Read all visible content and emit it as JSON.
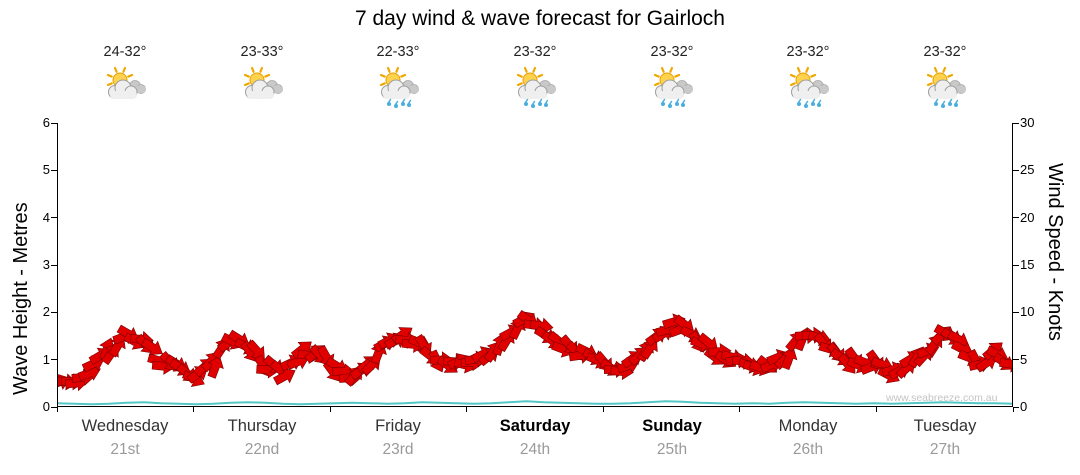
{
  "watermark": "www.seabreeze.com.au",
  "days": [
    {
      "name": "Wednesday",
      "date": "21st",
      "temp": "24-32°",
      "icon": "sun-clouds",
      "bold": false
    },
    {
      "name": "Thursday",
      "date": "22nd",
      "temp": "23-33°",
      "icon": "sun-clouds",
      "bold": false
    },
    {
      "name": "Friday",
      "date": "23rd",
      "temp": "22-33°",
      "icon": "sun-cloud-rain",
      "bold": false
    },
    {
      "name": "Saturday",
      "date": "24th",
      "temp": "23-32°",
      "icon": "sun-cloud-rain",
      "bold": true
    },
    {
      "name": "Sunday",
      "date": "25th",
      "temp": "23-32°",
      "icon": "sun-cloud-rain",
      "bold": true
    },
    {
      "name": "Monday",
      "date": "26th",
      "temp": "23-32°",
      "icon": "sun-cloud-rain",
      "bold": false
    },
    {
      "name": "Tuesday",
      "date": "27th",
      "temp": "23-32°",
      "icon": "sun-cloud-rain",
      "bold": false
    }
  ],
  "chart_data": {
    "type": "line",
    "title": "7 day wind & wave forecast for Gairloch",
    "categories": [
      "Wednesday 21st",
      "Thursday 22nd",
      "Friday 23rd",
      "Saturday 24th",
      "Sunday 25th",
      "Monday 26th",
      "Tuesday 27th"
    ],
    "points_per_day": 8,
    "left_axis": {
      "label": "Wave Height - Metres",
      "min": 0,
      "max": 6,
      "ticks": [
        0,
        1,
        2,
        3,
        4,
        5,
        6
      ]
    },
    "right_axis": {
      "label": "Wind Speed - Knots",
      "min": 0,
      "max": 30,
      "ticks": [
        0,
        5,
        10,
        15,
        20,
        25,
        30
      ]
    },
    "legend": "none",
    "grid": "off",
    "series": [
      {
        "name": "Wind Speed",
        "unit": "knots",
        "axis": "right",
        "color": "#e10000",
        "style": "red-arrow-band",
        "values": [
          3,
          3,
          4,
          6,
          7.5,
          6.5,
          5,
          4,
          3,
          4.5,
          7,
          6.5,
          4.5,
          3.5,
          5.5,
          6,
          4,
          3.5,
          4.5,
          6.5,
          7.5,
          6.5,
          5,
          4.5,
          4.5,
          5.5,
          7.5,
          9,
          8,
          6.5,
          5.5,
          5,
          4,
          4.5,
          6.5,
          8.5,
          8.5,
          7,
          5.5,
          5,
          4.5,
          4,
          5.5,
          7.5,
          7,
          5.5,
          4.5,
          4.5,
          3.5,
          4.5,
          6,
          7.5,
          6.5,
          5,
          5.5,
          4.5
        ]
      },
      {
        "name": "Wave Height",
        "unit": "metres",
        "axis": "left",
        "color": "#53c6c6",
        "style": "line",
        "values": [
          0.08,
          0.07,
          0.06,
          0.07,
          0.09,
          0.1,
          0.08,
          0.07,
          0.06,
          0.07,
          0.09,
          0.1,
          0.09,
          0.07,
          0.06,
          0.07,
          0.08,
          0.09,
          0.08,
          0.07,
          0.08,
          0.1,
          0.09,
          0.08,
          0.07,
          0.08,
          0.1,
          0.12,
          0.1,
          0.09,
          0.08,
          0.07,
          0.07,
          0.08,
          0.1,
          0.12,
          0.11,
          0.09,
          0.08,
          0.07,
          0.08,
          0.07,
          0.09,
          0.1,
          0.09,
          0.08,
          0.07,
          0.08,
          0.07,
          0.08,
          0.09,
          0.1,
          0.09,
          0.08,
          0.08,
          0.07
        ]
      }
    ]
  }
}
